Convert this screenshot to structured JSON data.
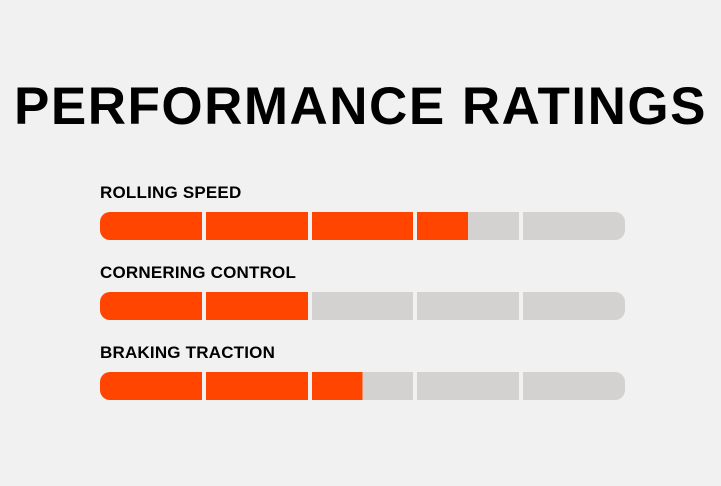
{
  "title": "PERFORMANCE RATINGS",
  "colors": {
    "background": "#f1f1f1",
    "bar_fill": "#ff4500",
    "bar_track": "#d4d2d0",
    "text": "#000000"
  },
  "ratings": {
    "segments": 5,
    "max": 5,
    "items": [
      {
        "label": "ROLLING SPEED",
        "value": 3.5
      },
      {
        "label": "CORNERING CONTROL",
        "value": 2
      },
      {
        "label": "BRAKING TRACTION",
        "value": 2.5
      }
    ]
  },
  "chart_data": {
    "type": "bar",
    "orientation": "horizontal",
    "title": "PERFORMANCE RATINGS",
    "categories": [
      "ROLLING SPEED",
      "CORNERING CONTROL",
      "BRAKING TRACTION"
    ],
    "values": [
      3.5,
      2.0,
      2.5
    ],
    "value_range": [
      0,
      5
    ],
    "segments_per_bar": 5,
    "bar_color": "#ff4500",
    "track_color": "#d4d2d0",
    "legend": false,
    "grid": false
  }
}
